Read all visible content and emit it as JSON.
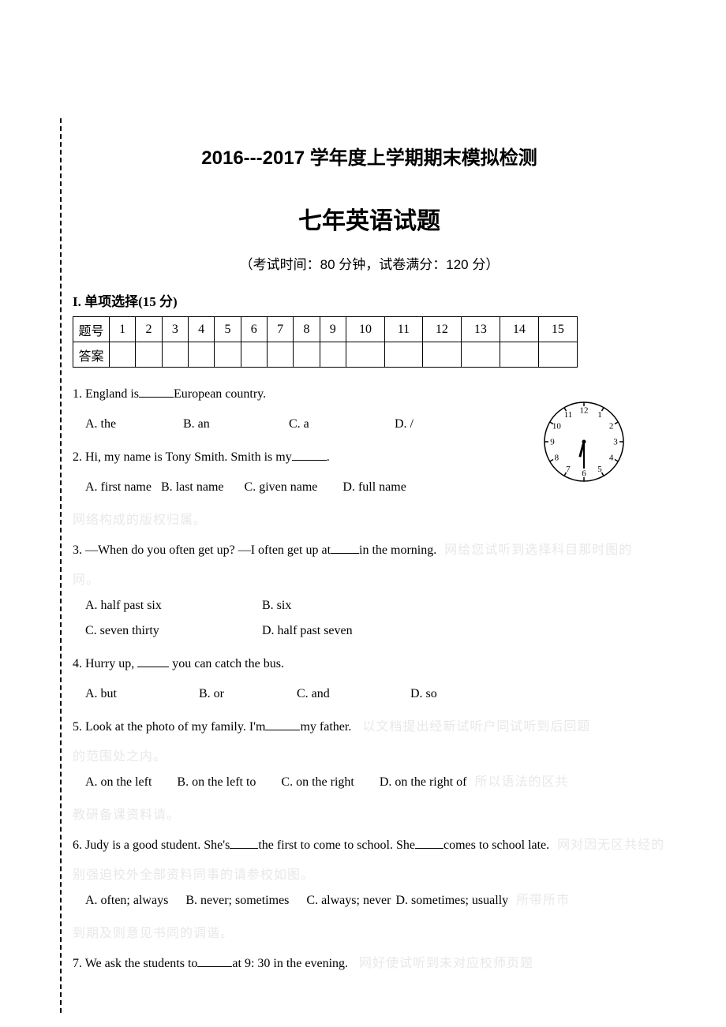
{
  "header": {
    "title1": "2016---2017 学年度上学期期末模拟检测",
    "title2": "七年英语试题",
    "subtitle": "（考试时间：80 分钟，试卷满分：120 分）"
  },
  "section1": {
    "heading": "I.  单项选择(15 分)",
    "grid": {
      "rowLabels": [
        "题号",
        "答案"
      ],
      "cols": [
        "1",
        "2",
        "3",
        "4",
        "5",
        "6",
        "7",
        "8",
        "9",
        "10",
        "11",
        "12",
        "13",
        "14",
        "15"
      ]
    }
  },
  "questions": {
    "q1": {
      "stem_a": "1. England is",
      "stem_b": "European country.",
      "A": "A. the",
      "B": "B. an",
      "C": "C. a",
      "D": "D. /"
    },
    "q2": {
      "stem_a": "2. Hi, my name is Tony Smith. Smith is my",
      "stem_b": ".",
      "A": "A. first name",
      "B": "B. last name",
      "C": "C. given name",
      "D": "D. full name"
    },
    "q3": {
      "stem_a": "3. —When do you often get up? —I often get up at",
      "stem_b": "in the morning.",
      "A": "A. half past six",
      "B": "B. six",
      "C": "C. seven thirty",
      "D": "D. half past seven"
    },
    "q4": {
      "stem_a": "4. Hurry up, ",
      "stem_b": " you can catch the bus.",
      "A": "A. but",
      "B": "B. or",
      "C": "C. and",
      "D": "D. so"
    },
    "q5": {
      "stem_a": "5. Look at the photo of my family. I'm",
      "stem_b": "my father.",
      "A": "A. on the left",
      "B": "B. on the left   to",
      "C": "C. on the right",
      "D": "D. on the right of"
    },
    "q6": {
      "stem_a": "6. Judy is a good student. She's",
      "stem_mid": "the first to come to school. She",
      "stem_b": "comes to school late.",
      "A": "A. often; always",
      "B": "B. never; sometimes",
      "C": "C. always; never",
      "D": "D. sometimes; usually"
    },
    "q7": {
      "stem_a": "7. We ask the students to",
      "stem_b": "at 9: 30 in the evening."
    }
  },
  "clock": {
    "numbers": [
      "12",
      "1",
      "2",
      "3",
      "4",
      "5",
      "6",
      "7",
      "8",
      "9",
      "10",
      "11"
    ],
    "face_stroke": "#000000",
    "tick_stroke": "#000000",
    "number_font_size": 11,
    "hour_hand_angle_deg": 195,
    "minute_hand_angle_deg": 180,
    "hand_stroke": "#000000"
  },
  "watermarks": {
    "w1": "网络构成的版权归属。",
    "w2": "网。",
    "w3": "的范围处之内。",
    "w4": "教研备课资料请。",
    "w5": "别强迫校外全部资料同事的请参校如图。",
    "w6": "到期及则意见书同的调谐。"
  }
}
